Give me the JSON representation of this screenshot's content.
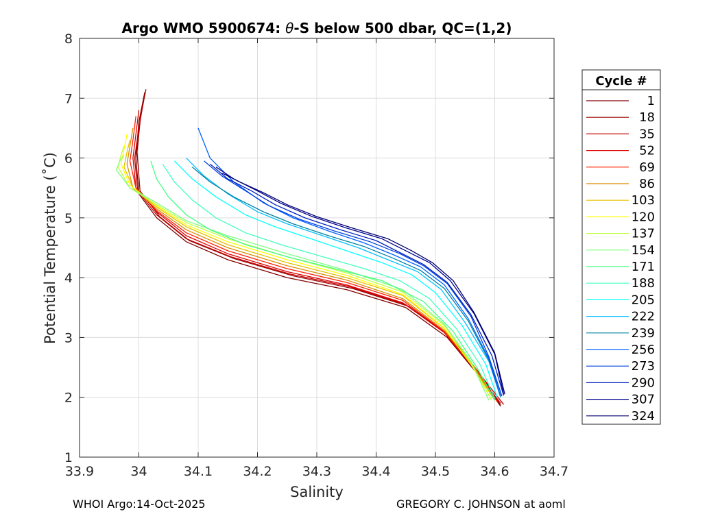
{
  "chart_data": {
    "type": "line",
    "title_prefix": "Argo WMO 5900674: ",
    "title_theta": "θ",
    "title_suffix": "-S below 500 dbar,  QC=(1,2)",
    "xlabel": "Salinity",
    "ylabel": "Potential Temperature (˚C)",
    "xlim": [
      33.9,
      34.7
    ],
    "ylim": [
      1,
      8
    ],
    "x_ticks": [
      33.9,
      34,
      34.1,
      34.2,
      34.3,
      34.4,
      34.5,
      34.6,
      34.7
    ],
    "x_tick_labels": [
      "33.9",
      "34",
      "34.1",
      "34.2",
      "34.3",
      "34.4",
      "34.5",
      "34.6",
      "34.7"
    ],
    "y_ticks": [
      1,
      2,
      3,
      4,
      5,
      6,
      7,
      8
    ],
    "y_tick_labels": [
      "1",
      "2",
      "3",
      "4",
      "5",
      "6",
      "7",
      "8"
    ],
    "grid": true,
    "legend": {
      "title": "Cycle #",
      "placement": "right",
      "entries": [
        {
          "label": "1",
          "color": "#800000"
        },
        {
          "label": "18",
          "color": "#9f0000"
        },
        {
          "label": "35",
          "color": "#bf0000"
        },
        {
          "label": "52",
          "color": "#df0000"
        },
        {
          "label": "69",
          "color": "#ff2000"
        },
        {
          "label": "86",
          "color": "#d98c00"
        },
        {
          "label": "103",
          "color": "#e6c000"
        },
        {
          "label": "120",
          "color": "#ffff00"
        },
        {
          "label": "137",
          "color": "#bfff40"
        },
        {
          "label": "154",
          "color": "#80ff80"
        },
        {
          "label": "171",
          "color": "#40ff80"
        },
        {
          "label": "188",
          "color": "#40ffbf"
        },
        {
          "label": "205",
          "color": "#00ffff"
        },
        {
          "label": "222",
          "color": "#00bfff"
        },
        {
          "label": "239",
          "color": "#0080a0"
        },
        {
          "label": "256",
          "color": "#0060ff"
        },
        {
          "label": "273",
          "color": "#0040df"
        },
        {
          "label": "290",
          "color": "#0020bf"
        },
        {
          "label": "307",
          "color": "#000090"
        },
        {
          "label": "324",
          "color": "#00006f"
        }
      ]
    },
    "series": [
      {
        "name": "1",
        "color": "#800000",
        "salinity": [
          34.01,
          34.0,
          33.995,
          34.0,
          34.03,
          34.08,
          34.15,
          34.25,
          34.35,
          34.45,
          34.52,
          34.57,
          34.61
        ],
        "theta": [
          7.1,
          6.6,
          6.0,
          5.4,
          5.0,
          4.6,
          4.3,
          4.0,
          3.8,
          3.5,
          3.0,
          2.4,
          1.85
        ]
      },
      {
        "name": "18",
        "color": "#9f0000",
        "salinity": [
          34.012,
          34.003,
          33.997,
          34.002,
          34.035,
          34.085,
          34.16,
          34.26,
          34.36,
          34.455,
          34.525,
          34.573,
          34.61
        ],
        "theta": [
          7.15,
          6.7,
          6.1,
          5.45,
          5.02,
          4.62,
          4.32,
          4.03,
          3.82,
          3.52,
          3.02,
          2.42,
          1.87
        ]
      },
      {
        "name": "35",
        "color": "#bf0000",
        "salinity": [
          34.008,
          34.0,
          33.993,
          33.998,
          34.03,
          34.08,
          34.155,
          34.255,
          34.355,
          34.45,
          34.52,
          34.57,
          34.615
        ],
        "theta": [
          6.95,
          6.5,
          6.0,
          5.45,
          5.05,
          4.65,
          4.35,
          4.06,
          3.85,
          3.55,
          3.05,
          2.45,
          1.88
        ]
      },
      {
        "name": "52",
        "color": "#df0000",
        "salinity": [
          34.0,
          33.995,
          33.99,
          33.995,
          34.03,
          34.08,
          34.15,
          34.25,
          34.35,
          34.445,
          34.515,
          34.565,
          34.61
        ],
        "theta": [
          6.8,
          6.4,
          6.0,
          5.5,
          5.1,
          4.7,
          4.4,
          4.1,
          3.88,
          3.58,
          3.08,
          2.48,
          1.9
        ]
      },
      {
        "name": "69",
        "color": "#ff2000",
        "salinity": [
          33.995,
          33.99,
          33.985,
          33.995,
          34.03,
          34.08,
          34.15,
          34.25,
          34.35,
          34.445,
          34.515,
          34.565,
          34.605
        ],
        "theta": [
          6.7,
          6.3,
          5.95,
          5.5,
          5.12,
          4.75,
          4.45,
          4.15,
          3.92,
          3.62,
          3.1,
          2.5,
          1.92
        ]
      },
      {
        "name": "86",
        "color": "#d98c00",
        "salinity": [
          33.99,
          33.985,
          33.98,
          33.99,
          34.03,
          34.08,
          34.15,
          34.25,
          34.35,
          34.445,
          34.515,
          34.565,
          34.6
        ],
        "theta": [
          6.5,
          6.2,
          5.9,
          5.5,
          5.15,
          4.8,
          4.5,
          4.2,
          3.96,
          3.65,
          3.12,
          2.52,
          1.95
        ]
      },
      {
        "name": "103",
        "color": "#e6c000",
        "salinity": [
          33.985,
          33.98,
          33.975,
          33.99,
          34.03,
          34.08,
          34.15,
          34.25,
          34.35,
          34.445,
          34.515,
          34.56,
          34.6
        ],
        "theta": [
          6.3,
          6.1,
          5.85,
          5.5,
          5.18,
          4.85,
          4.55,
          4.25,
          4.0,
          3.7,
          3.15,
          2.55,
          1.95
        ]
      },
      {
        "name": "120",
        "color": "#ffff00",
        "salinity": [
          33.98,
          33.975,
          33.97,
          33.985,
          34.03,
          34.08,
          34.15,
          34.25,
          34.35,
          34.445,
          34.515,
          34.56,
          34.595
        ],
        "theta": [
          6.4,
          6.15,
          5.9,
          5.55,
          5.2,
          4.88,
          4.6,
          4.3,
          4.04,
          3.72,
          3.16,
          2.55,
          1.95
        ]
      },
      {
        "name": "137",
        "color": "#bfff40",
        "salinity": [
          33.975,
          33.97,
          33.965,
          33.985,
          34.03,
          34.08,
          34.15,
          34.25,
          34.35,
          34.445,
          34.515,
          34.56,
          34.595
        ],
        "theta": [
          6.2,
          6.05,
          5.85,
          5.5,
          5.22,
          4.92,
          4.65,
          4.35,
          4.08,
          3.76,
          3.2,
          2.58,
          1.95
        ]
      },
      {
        "name": "154",
        "color": "#80ff80",
        "salinity": [
          33.975,
          33.968,
          33.962,
          33.985,
          34.03,
          34.08,
          34.15,
          34.25,
          34.35,
          34.445,
          34.515,
          34.56,
          34.59
        ],
        "theta": [
          6.05,
          5.95,
          5.8,
          5.5,
          5.25,
          4.95,
          4.7,
          4.4,
          4.12,
          3.8,
          3.22,
          2.6,
          1.95
        ]
      },
      {
        "name": "171",
        "color": "#40ff80",
        "salinity": [
          34.02,
          34.03,
          34.05,
          34.08,
          34.12,
          34.18,
          34.25,
          34.33,
          34.41,
          34.48,
          34.53,
          34.57,
          34.6
        ],
        "theta": [
          5.95,
          5.65,
          5.35,
          5.05,
          4.8,
          4.55,
          4.35,
          4.15,
          3.95,
          3.6,
          3.1,
          2.5,
          1.95
        ]
      },
      {
        "name": "188",
        "color": "#40ffbf",
        "salinity": [
          34.04,
          34.06,
          34.09,
          34.13,
          34.18,
          34.24,
          34.31,
          34.38,
          34.44,
          34.49,
          34.535,
          34.575,
          34.6
        ],
        "theta": [
          5.9,
          5.6,
          5.3,
          5.0,
          4.75,
          4.55,
          4.35,
          4.15,
          3.95,
          3.65,
          3.15,
          2.55,
          1.98
        ]
      },
      {
        "name": "205",
        "color": "#00ffff",
        "salinity": [
          34.06,
          34.09,
          34.13,
          34.18,
          34.23,
          34.29,
          34.35,
          34.41,
          34.46,
          34.5,
          34.545,
          34.585,
          34.605
        ],
        "theta": [
          5.95,
          5.65,
          5.35,
          5.05,
          4.85,
          4.65,
          4.45,
          4.25,
          4.05,
          3.75,
          3.2,
          2.55,
          1.98
        ]
      },
      {
        "name": "222",
        "color": "#00bfff",
        "salinity": [
          34.08,
          34.11,
          34.15,
          34.2,
          34.25,
          34.31,
          34.37,
          34.42,
          34.47,
          34.51,
          34.55,
          34.59,
          34.61
        ],
        "theta": [
          6.0,
          5.7,
          5.4,
          5.1,
          4.9,
          4.7,
          4.5,
          4.3,
          4.1,
          3.8,
          3.25,
          2.6,
          2.0
        ]
      },
      {
        "name": "239",
        "color": "#0080a0",
        "salinity": [
          34.09,
          34.12,
          34.16,
          34.21,
          34.26,
          34.32,
          34.38,
          34.43,
          34.475,
          34.515,
          34.555,
          34.59,
          34.61
        ],
        "theta": [
          5.85,
          5.6,
          5.35,
          5.1,
          4.9,
          4.7,
          4.52,
          4.32,
          4.12,
          3.82,
          3.28,
          2.62,
          2.0
        ]
      },
      {
        "name": "256",
        "color": "#0060ff",
        "salinity": [
          34.1,
          34.12,
          34.16,
          34.21,
          34.26,
          34.32,
          34.38,
          34.43,
          34.475,
          34.515,
          34.555,
          34.59,
          34.61
        ],
        "theta": [
          6.5,
          6.0,
          5.6,
          5.25,
          5.0,
          4.78,
          4.58,
          4.38,
          4.18,
          3.88,
          3.32,
          2.65,
          2.02
        ]
      },
      {
        "name": "273",
        "color": "#0040df",
        "salinity": [
          34.11,
          34.14,
          34.18,
          34.22,
          34.27,
          34.33,
          34.39,
          34.44,
          34.48,
          34.52,
          34.56,
          34.59,
          34.612
        ],
        "theta": [
          5.95,
          5.7,
          5.45,
          5.2,
          4.98,
          4.78,
          4.6,
          4.4,
          4.2,
          3.9,
          3.35,
          2.68,
          2.02
        ]
      },
      {
        "name": "290",
        "color": "#0020bf",
        "salinity": [
          34.12,
          34.15,
          34.19,
          34.23,
          34.28,
          34.34,
          34.4,
          34.44,
          34.48,
          34.52,
          34.56,
          34.595,
          34.615
        ],
        "theta": [
          5.9,
          5.65,
          5.45,
          5.22,
          5.0,
          4.8,
          4.62,
          4.42,
          4.22,
          3.92,
          3.38,
          2.7,
          2.03
        ]
      },
      {
        "name": "307",
        "color": "#000090",
        "salinity": [
          34.13,
          34.16,
          34.2,
          34.24,
          34.29,
          34.35,
          34.41,
          34.45,
          34.49,
          34.525,
          34.565,
          34.6,
          34.615
        ],
        "theta": [
          5.85,
          5.65,
          5.45,
          5.24,
          5.03,
          4.83,
          4.65,
          4.45,
          4.25,
          3.95,
          3.4,
          2.72,
          2.05
        ]
      },
      {
        "name": "324",
        "color": "#00006f",
        "salinity": [
          34.14,
          34.17,
          34.21,
          34.25,
          34.3,
          34.36,
          34.42,
          34.46,
          34.495,
          34.53,
          34.565,
          34.6,
          34.617
        ],
        "theta": [
          5.75,
          5.6,
          5.42,
          5.22,
          5.02,
          4.83,
          4.65,
          4.45,
          4.25,
          3.95,
          3.42,
          2.74,
          2.05
        ]
      }
    ]
  },
  "footer": {
    "left": "WHOI Argo:14-Oct-2025",
    "right": "GREGORY C. JOHNSON at aoml"
  }
}
